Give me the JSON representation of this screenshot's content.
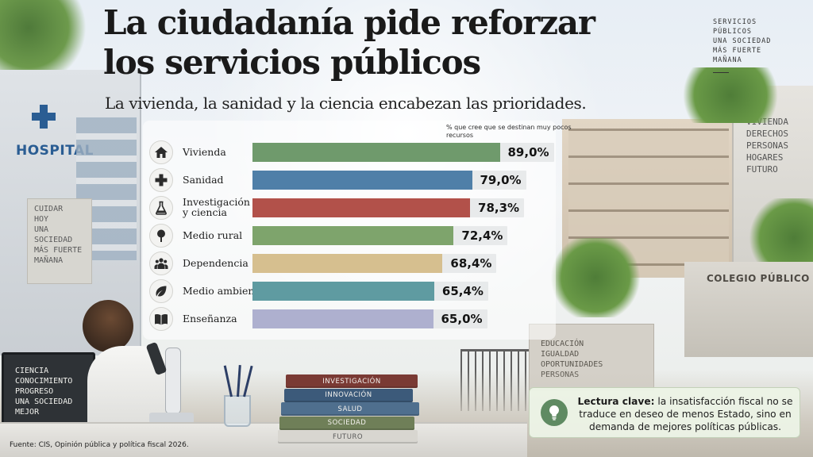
{
  "header": {
    "title_line1": "La ciudadanía pide reforzar",
    "title_line2": "los servicios públicos",
    "subtitle": "La vivienda, la sanidad y la ciencia encabezan las prioridades."
  },
  "side_tag": {
    "lines": [
      "SERVICIOS",
      "PÚBLICOS",
      "UNA SOCIEDAD",
      "MÁS FUERTE",
      "MAÑANA"
    ]
  },
  "scene_text": {
    "hospital_sign": "HOSPITAL",
    "hospital_wall": "CUIDAR\nHOY\nUNA SOCIEDAD\nMÁS FUERTE\nMAÑANA",
    "tower_wall": "VIVIENDA\nDERECHOS\nPERSONAS\nHOGARES\nFUTURO",
    "school_sign": "COLEGIO PÚBLICO",
    "gate_wall": "EDUCACIÓN\nIGUALDAD\nOPORTUNIDADES\nPERSONAS",
    "chalkboard": "CIENCIA\nCONOCIMIENTO\nPROGRESO\nUNA SOCIEDAD\nMEJOR",
    "books": [
      "INVESTIGACIÓN",
      "INNOVACIÓN",
      "SALUD",
      "SOCIEDAD",
      "FUTURO"
    ]
  },
  "book_colors": [
    "#7a3a34",
    "#3c5a7a",
    "#4f6f8e",
    "#6f7f58",
    "#d8d6d0"
  ],
  "book_text_colors": [
    "#f4f2ee",
    "#f4f2ee",
    "#f4f2ee",
    "#f4f2ee",
    "#5a5a5a"
  ],
  "chart_data": {
    "type": "bar",
    "orientation": "horizontal",
    "unit_label": "% que cree que se destinan muy pocos recursos",
    "xlim": [
      0,
      100
    ],
    "categories": [
      "Vivienda",
      "Sanidad",
      "Investigación y ciencia",
      "Medio rural",
      "Dependencia",
      "Medio ambiente",
      "Enseñanza"
    ],
    "values": [
      89.0,
      79.0,
      78.3,
      72.4,
      68.4,
      65.4,
      65.0
    ],
    "value_labels": [
      "89,0%",
      "79,0%",
      "78,3%",
      "72,4%",
      "68,4%",
      "65,4%",
      "65,0%"
    ],
    "icons": [
      "house-icon",
      "medical-cross-icon",
      "flask-icon",
      "tree-icon",
      "people-icon",
      "leaf-icon",
      "book-icon"
    ],
    "colors": [
      "#6f9a6c",
      "#4f7fa8",
      "#b2514a",
      "#7ea46c",
      "#d6bf8f",
      "#5f9ba1",
      "#aeb0cf"
    ]
  },
  "callout": {
    "bold": "Lectura clave:",
    "text": " la insatisfacción fiscal no se traduce en deseo de menos Estado, sino en demanda de mejores políticas públicas.",
    "icon": "lightbulb-icon"
  },
  "source": "Fuente: CIS, Opinión pública y política fiscal 2026."
}
